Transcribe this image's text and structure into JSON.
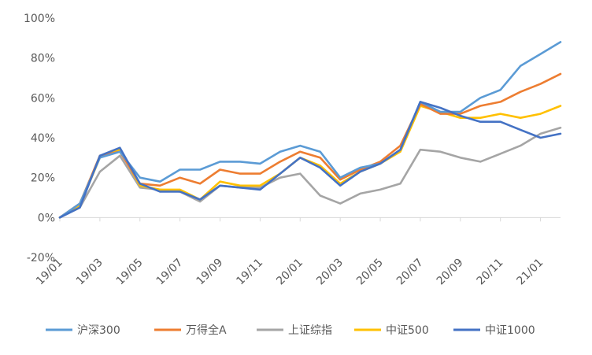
{
  "chart_data": {
    "type": "line",
    "title": "",
    "xlabel": "",
    "ylabel": "",
    "ylim": [
      -0.2,
      1.0
    ],
    "grid": false,
    "legend_position": "bottom",
    "y_ticks": [
      "100%",
      "80%",
      "60%",
      "40%",
      "20%",
      "0%",
      "-20%"
    ],
    "x_ticks": [
      "19/01",
      "19/03",
      "19/05",
      "19/07",
      "19/09",
      "19/11",
      "20/01",
      "20/03",
      "20/05",
      "20/07",
      "20/09",
      "20/11",
      "21/01"
    ],
    "x_months": [
      "19/01",
      "19/02",
      "19/03",
      "19/04",
      "19/05",
      "19/06",
      "19/07",
      "19/08",
      "19/09",
      "19/10",
      "19/11",
      "19/12",
      "20/01",
      "20/02",
      "20/03",
      "20/04",
      "20/05",
      "20/06",
      "20/07",
      "20/08",
      "20/09",
      "20/10",
      "20/11",
      "20/12",
      "21/01",
      "21/02"
    ],
    "series": [
      {
        "name": "沪深300",
        "color": "#5B9BD5",
        "values": [
          0.0,
          0.07,
          0.3,
          0.33,
          0.2,
          0.18,
          0.24,
          0.24,
          0.28,
          0.28,
          0.27,
          0.33,
          0.36,
          0.33,
          0.2,
          0.25,
          0.27,
          0.34,
          0.58,
          0.53,
          0.53,
          0.6,
          0.64,
          0.76,
          0.82,
          0.88
        ]
      },
      {
        "name": "万得全A",
        "color": "#ED7D31",
        "values": [
          0.0,
          0.07,
          0.31,
          0.33,
          0.17,
          0.16,
          0.2,
          0.17,
          0.24,
          0.22,
          0.22,
          0.28,
          0.33,
          0.3,
          0.19,
          0.24,
          0.28,
          0.36,
          0.57,
          0.52,
          0.52,
          0.56,
          0.58,
          0.63,
          0.67,
          0.72
        ]
      },
      {
        "name": "上证综指",
        "color": "#A5A5A5",
        "values": [
          0.0,
          0.05,
          0.23,
          0.31,
          0.15,
          0.14,
          0.13,
          0.08,
          0.16,
          0.15,
          0.15,
          0.2,
          0.22,
          0.11,
          0.07,
          0.12,
          0.14,
          0.17,
          0.34,
          0.33,
          0.3,
          0.28,
          0.32,
          0.36,
          0.42,
          0.45
        ]
      },
      {
        "name": "中证500",
        "color": "#FFC000",
        "values": [
          0.0,
          0.06,
          0.3,
          0.34,
          0.16,
          0.14,
          0.14,
          0.09,
          0.18,
          0.16,
          0.16,
          0.22,
          0.3,
          0.26,
          0.17,
          0.23,
          0.27,
          0.33,
          0.56,
          0.53,
          0.5,
          0.5,
          0.52,
          0.5,
          0.52,
          0.56
        ]
      },
      {
        "name": "中证1000",
        "color": "#4472C4",
        "values": [
          0.0,
          0.05,
          0.31,
          0.35,
          0.17,
          0.13,
          0.13,
          0.09,
          0.16,
          0.15,
          0.14,
          0.22,
          0.3,
          0.25,
          0.16,
          0.23,
          0.27,
          0.34,
          0.58,
          0.55,
          0.51,
          0.48,
          0.48,
          0.44,
          0.4,
          0.42
        ]
      }
    ]
  }
}
